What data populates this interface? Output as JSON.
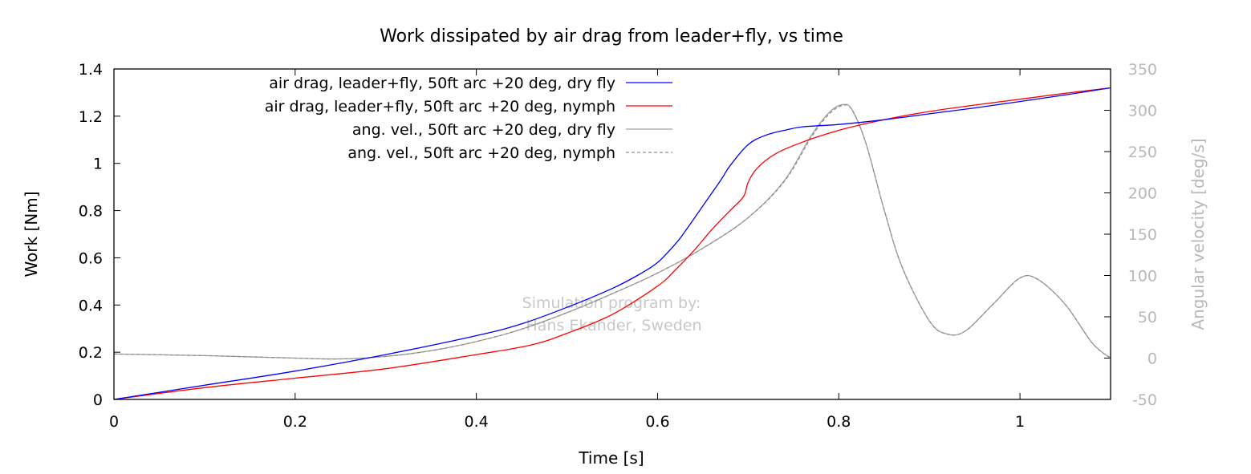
{
  "chart_data": {
    "type": "line",
    "title": "Work dissipated by air drag from leader+fly, vs time",
    "xlabel": "Time [s]",
    "ylabel": "Work [Nm]",
    "y2label": "Angular velocity [deg/s]",
    "xlim": [
      0,
      1.1
    ],
    "ylim": [
      0,
      1.4
    ],
    "y2lim": [
      -50,
      350
    ],
    "xticks": [
      0,
      0.2,
      0.4,
      0.6,
      0.8,
      1
    ],
    "xtick_labels": [
      "0",
      "0.2",
      "0.4",
      "0.6",
      "0.8",
      "1"
    ],
    "yticks": [
      0,
      0.2,
      0.4,
      0.6,
      0.8,
      1,
      1.2,
      1.4
    ],
    "ytick_labels": [
      "0",
      "0.2",
      "0.4",
      "0.6",
      "0.8",
      "1",
      "1.2",
      "1.4"
    ],
    "y2ticks": [
      -50,
      0,
      50,
      100,
      150,
      200,
      250,
      300,
      350
    ],
    "y2tick_labels": [
      "-50",
      "0",
      "50",
      "100",
      "150",
      "200",
      "250",
      "300",
      "350"
    ],
    "grid": false,
    "legend_position": "top-left",
    "watermark": [
      "Simulation program by:",
      "Hans Ekander, Sweden"
    ],
    "series": [
      {
        "name": "air drag, leader+fly, 50ft arc +20 deg, dry fly",
        "axis": "y",
        "color": "#0000ff",
        "dash": "solid",
        "x": [
          0,
          0.1,
          0.2,
          0.3,
          0.4,
          0.45,
          0.5,
          0.55,
          0.58,
          0.6,
          0.62,
          0.63,
          0.65,
          0.67,
          0.68,
          0.7,
          0.72,
          0.74,
          0.76,
          0.8,
          0.85,
          0.9,
          0.95,
          1.0,
          1.05,
          1.1
        ],
        "values": [
          0,
          0.06,
          0.12,
          0.19,
          0.27,
          0.32,
          0.39,
          0.47,
          0.53,
          0.58,
          0.66,
          0.71,
          0.82,
          0.93,
          0.99,
          1.08,
          1.12,
          1.14,
          1.155,
          1.165,
          1.185,
          1.21,
          1.235,
          1.262,
          1.29,
          1.32
        ]
      },
      {
        "name": "air drag, leader+fly, 50ft arc +20 deg, nymph",
        "axis": "y",
        "color": "#ff0000",
        "dash": "solid",
        "x": [
          0,
          0.1,
          0.2,
          0.3,
          0.4,
          0.46,
          0.5,
          0.55,
          0.6,
          0.62,
          0.64,
          0.66,
          0.68,
          0.695,
          0.7,
          0.71,
          0.73,
          0.76,
          0.8,
          0.85,
          0.9,
          0.95,
          1.0,
          1.05,
          1.1
        ],
        "values": [
          0,
          0.05,
          0.09,
          0.13,
          0.19,
          0.23,
          0.28,
          0.36,
          0.48,
          0.55,
          0.63,
          0.72,
          0.8,
          0.86,
          0.92,
          0.98,
          1.04,
          1.09,
          1.14,
          1.185,
          1.22,
          1.247,
          1.272,
          1.297,
          1.32
        ]
      },
      {
        "name": "ang. vel., 50ft arc +20 deg, dry fly",
        "axis": "y2",
        "color": "#a0a0a0",
        "dash": "solid",
        "x": [
          0,
          0.1,
          0.2,
          0.25,
          0.3,
          0.35,
          0.4,
          0.45,
          0.5,
          0.55,
          0.6,
          0.65,
          0.7,
          0.74,
          0.77,
          0.79,
          0.805,
          0.815,
          0.83,
          0.85,
          0.87,
          0.9,
          0.92,
          0.94,
          0.97,
          1.0,
          1.02,
          1.05,
          1.08,
          1.1
        ],
        "values": [
          5,
          3,
          0,
          -1,
          2,
          9,
          20,
          35,
          55,
          78,
          103,
          133,
          170,
          215,
          270,
          298,
          307,
          300,
          260,
          180,
          110,
          45,
          29,
          33,
          65,
          97,
          95,
          65,
          18,
          0
        ]
      },
      {
        "name": "ang. vel., 50ft arc +20 deg, nymph",
        "axis": "y2",
        "color": "#a0a0a0",
        "dash": "dashed",
        "x": [
          0,
          0.1,
          0.2,
          0.25,
          0.3,
          0.35,
          0.4,
          0.45,
          0.5,
          0.55,
          0.6,
          0.65,
          0.7,
          0.74,
          0.77,
          0.79,
          0.805,
          0.815,
          0.83,
          0.85,
          0.87,
          0.9,
          0.92,
          0.94,
          0.97,
          1.0,
          1.02,
          1.05,
          1.08,
          1.1
        ],
        "values": [
          5,
          3,
          0,
          -1,
          2,
          9,
          20,
          35,
          55,
          78,
          103,
          133,
          170,
          214,
          268,
          296,
          306,
          300,
          260,
          180,
          110,
          45,
          29,
          33,
          65,
          97,
          95,
          65,
          18,
          0
        ]
      }
    ]
  }
}
